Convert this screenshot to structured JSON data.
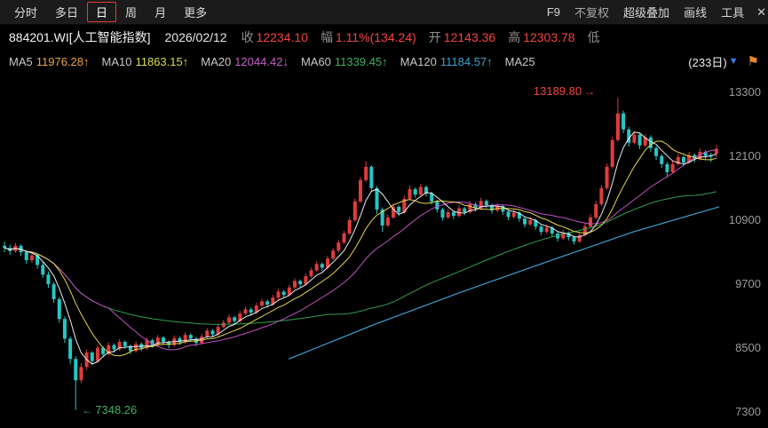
{
  "menubar": {
    "left_items": [
      {
        "label": "分时",
        "active": false
      },
      {
        "label": "多日",
        "active": false
      },
      {
        "label": "日",
        "active": true
      },
      {
        "label": "周",
        "active": false
      },
      {
        "label": "月",
        "active": false
      },
      {
        "label": "更多",
        "active": false
      }
    ],
    "right_items": [
      {
        "label": "F9",
        "dim": false
      },
      {
        "label": "不复权",
        "dim": true
      },
      {
        "label": "超级叠加",
        "dim": false
      },
      {
        "label": "画线",
        "dim": false
      },
      {
        "label": "工具",
        "dim": false
      }
    ],
    "overflow_icon": "✕"
  },
  "quote": {
    "symbol": "884201.WI[人工智能指数]",
    "date": "2026/02/12",
    "fields": [
      {
        "label": "收",
        "value": "12234.10"
      },
      {
        "label": "幅",
        "value": "1.11%(134.24)"
      },
      {
        "label": "开",
        "value": "12143.36"
      },
      {
        "label": "高",
        "value": "12303.78"
      },
      {
        "label": "低",
        "value": ""
      }
    ]
  },
  "ma_legend": {
    "items": [
      {
        "label": "MA5",
        "value": "11976.28↑",
        "color": "#e8a448"
      },
      {
        "label": "MA10",
        "value": "11863.15↑",
        "color": "#dcdc52"
      },
      {
        "label": "MA20",
        "value": "12044.42↓",
        "color": "#c85fc8"
      },
      {
        "label": "MA60",
        "value": "11339.45↑",
        "color": "#3fae5f"
      },
      {
        "label": "MA120",
        "value": "11184.57↑",
        "color": "#3f9fd0"
      },
      {
        "label": "MA25",
        "value": "",
        "color": "#9a9a9a"
      }
    ],
    "period_badge": "(233日)",
    "dropdown_icon": "▼",
    "flag_icon": "⚑"
  },
  "colors": {
    "up": "#e03c3c",
    "down": "#26c6c6",
    "ma5": "#eeeeee",
    "ma10": "#e6d44a",
    "ma20": "#c24fc2",
    "ma60": "#2f9e4f",
    "ma120": "#3f9fd0",
    "axis_text": "#9a9a9a",
    "background": "#000000"
  },
  "chart_data": {
    "type": "candlestick",
    "title": "884201.WI 人工智能指数 日K",
    "y_ticks": [
      13300,
      12100,
      10900,
      9700,
      8500,
      7300
    ],
    "y_range": [
      7140,
      13560
    ],
    "legend_position": "top",
    "grid": false,
    "annotations": {
      "high": {
        "label": "13189.80",
        "price": 13189.8,
        "index": 112,
        "arrow": "→"
      },
      "low": {
        "label": "7348.26",
        "price": 7348.26,
        "index": 13,
        "arrow": "←"
      }
    },
    "ma_windows": [
      5,
      10,
      20,
      60
    ],
    "ma120_anchors": [
      [
        0.4,
        8300
      ],
      [
        0.52,
        8950
      ],
      [
        0.64,
        9550
      ],
      [
        0.76,
        10120
      ],
      [
        0.88,
        10680
      ],
      [
        1.0,
        11150
      ]
    ],
    "candles": [
      [
        10420,
        10500,
        10300,
        10380
      ],
      [
        10380,
        10440,
        10250,
        10320
      ],
      [
        10320,
        10470,
        10290,
        10420
      ],
      [
        10420,
        10450,
        10230,
        10300
      ],
      [
        10300,
        10340,
        10080,
        10150
      ],
      [
        10150,
        10290,
        10100,
        10240
      ],
      [
        10240,
        10260,
        9990,
        10060
      ],
      [
        10060,
        10120,
        9820,
        9880
      ],
      [
        9880,
        9940,
        9630,
        9700
      ],
      [
        9700,
        9740,
        9350,
        9420
      ],
      [
        9420,
        9460,
        8980,
        9050
      ],
      [
        9050,
        9100,
        8600,
        8680
      ],
      [
        8680,
        8720,
        8210,
        8300
      ],
      [
        8300,
        8350,
        7348.26,
        7900
      ],
      [
        7900,
        8220,
        7850,
        8150
      ],
      [
        8150,
        8480,
        8100,
        8420
      ],
      [
        8420,
        8450,
        8190,
        8260
      ],
      [
        8260,
        8560,
        8230,
        8510
      ],
      [
        8510,
        8540,
        8330,
        8390
      ],
      [
        8390,
        8610,
        8360,
        8560
      ],
      [
        8560,
        8590,
        8420,
        8480
      ],
      [
        8480,
        8670,
        8450,
        8620
      ],
      [
        8620,
        8650,
        8490,
        8540
      ],
      [
        8540,
        8570,
        8390,
        8450
      ],
      [
        8450,
        8630,
        8420,
        8580
      ],
      [
        8580,
        8610,
        8450,
        8500
      ],
      [
        8500,
        8700,
        8470,
        8650
      ],
      [
        8650,
        8680,
        8510,
        8560
      ],
      [
        8560,
        8750,
        8530,
        8700
      ],
      [
        8700,
        8730,
        8570,
        8620
      ],
      [
        8620,
        8650,
        8500,
        8560
      ],
      [
        8560,
        8740,
        8530,
        8690
      ],
      [
        8690,
        8720,
        8560,
        8610
      ],
      [
        8610,
        8800,
        8580,
        8750
      ],
      [
        8750,
        8780,
        8630,
        8680
      ],
      [
        8680,
        8710,
        8540,
        8600
      ],
      [
        8600,
        8770,
        8570,
        8720
      ],
      [
        8720,
        8880,
        8690,
        8830
      ],
      [
        8830,
        8860,
        8700,
        8760
      ],
      [
        8760,
        8950,
        8730,
        8900
      ],
      [
        8900,
        9030,
        8870,
        8980
      ],
      [
        8980,
        9130,
        8950,
        9080
      ],
      [
        9080,
        9110,
        8950,
        9010
      ],
      [
        9010,
        9200,
        8980,
        9150
      ],
      [
        9150,
        9280,
        9120,
        9230
      ],
      [
        9230,
        9260,
        9110,
        9170
      ],
      [
        9170,
        9350,
        9140,
        9300
      ],
      [
        9300,
        9430,
        9270,
        9380
      ],
      [
        9380,
        9410,
        9260,
        9320
      ],
      [
        9320,
        9500,
        9290,
        9450
      ],
      [
        9450,
        9610,
        9420,
        9560
      ],
      [
        9560,
        9590,
        9440,
        9500
      ],
      [
        9500,
        9690,
        9470,
        9640
      ],
      [
        9640,
        9810,
        9610,
        9760
      ],
      [
        9760,
        9790,
        9640,
        9700
      ],
      [
        9700,
        9900,
        9670,
        9850
      ],
      [
        9850,
        10010,
        9820,
        9960
      ],
      [
        9960,
        10130,
        9930,
        10080
      ],
      [
        10080,
        10110,
        9950,
        10010
      ],
      [
        10010,
        10230,
        9980,
        10180
      ],
      [
        10180,
        10380,
        10150,
        10330
      ],
      [
        10330,
        10530,
        10300,
        10480
      ],
      [
        10480,
        10700,
        10450,
        10650
      ],
      [
        10650,
        10960,
        10620,
        10900
      ],
      [
        10900,
        11310,
        10870,
        11250
      ],
      [
        11250,
        11710,
        11220,
        11650
      ],
      [
        11650,
        12004,
        11620,
        11900
      ],
      [
        11900,
        11930,
        11440,
        11500
      ],
      [
        11500,
        11540,
        11020,
        11100
      ],
      [
        11100,
        11140,
        10680,
        10800
      ],
      [
        10800,
        11010,
        10770,
        10950
      ],
      [
        10950,
        11210,
        10920,
        11150
      ],
      [
        11150,
        11180,
        10980,
        11050
      ],
      [
        11050,
        11360,
        11020,
        11300
      ],
      [
        11300,
        11550,
        11270,
        11480
      ],
      [
        11480,
        11510,
        11320,
        11380
      ],
      [
        11380,
        11580,
        11350,
        11520
      ],
      [
        11520,
        11550,
        11340,
        11400
      ],
      [
        11400,
        11430,
        11190,
        11250
      ],
      [
        11250,
        11280,
        11040,
        11100
      ],
      [
        11100,
        11130,
        10890,
        10950
      ],
      [
        10950,
        11110,
        10920,
        11050
      ],
      [
        11050,
        11080,
        10920,
        10980
      ],
      [
        10980,
        11180,
        10950,
        11120
      ],
      [
        11120,
        11150,
        10990,
        11050
      ],
      [
        11050,
        11260,
        11020,
        11200
      ],
      [
        11200,
        11230,
        11060,
        11120
      ],
      [
        11120,
        11320,
        11090,
        11260
      ],
      [
        11260,
        11290,
        11120,
        11180
      ],
      [
        11180,
        11210,
        11020,
        11080
      ],
      [
        11080,
        11220,
        11050,
        11160
      ],
      [
        11160,
        11190,
        11000,
        11060
      ],
      [
        11060,
        11090,
        10900,
        10960
      ],
      [
        10960,
        11100,
        10930,
        11040
      ],
      [
        11040,
        11070,
        10870,
        10930
      ],
      [
        10930,
        10960,
        10760,
        10820
      ],
      [
        10820,
        10960,
        10790,
        10900
      ],
      [
        10900,
        10930,
        10720,
        10780
      ],
      [
        10780,
        10810,
        10620,
        10680
      ],
      [
        10680,
        10820,
        10650,
        10760
      ],
      [
        10760,
        10790,
        10590,
        10650
      ],
      [
        10650,
        10680,
        10500,
        10560
      ],
      [
        10560,
        10720,
        10530,
        10660
      ],
      [
        10660,
        10690,
        10520,
        10580
      ],
      [
        10580,
        10610,
        10440,
        10500
      ],
      [
        10500,
        10680,
        10470,
        10620
      ],
      [
        10620,
        10840,
        10590,
        10780
      ],
      [
        10780,
        11010,
        10750,
        10950
      ],
      [
        10950,
        11260,
        10920,
        11200
      ],
      [
        11200,
        11560,
        11170,
        11500
      ],
      [
        11500,
        11960,
        11470,
        11900
      ],
      [
        11900,
        12460,
        11870,
        12400
      ],
      [
        12400,
        13189.8,
        12370,
        12900
      ],
      [
        12900,
        12950,
        12530,
        12600
      ],
      [
        12600,
        12650,
        12280,
        12350
      ],
      [
        12350,
        12560,
        12320,
        12500
      ],
      [
        12500,
        12540,
        12230,
        12300
      ],
      [
        12300,
        12510,
        12270,
        12450
      ],
      [
        12450,
        12490,
        12180,
        12250
      ],
      [
        12250,
        12290,
        12030,
        12100
      ],
      [
        12100,
        12140,
        11880,
        11950
      ],
      [
        11950,
        11990,
        11700,
        11800
      ],
      [
        11800,
        12010,
        11770,
        11950
      ],
      [
        11950,
        12140,
        11920,
        12080
      ],
      [
        12080,
        12110,
        11910,
        11980
      ],
      [
        11980,
        12180,
        11950,
        12120
      ],
      [
        12120,
        12150,
        11980,
        12050
      ],
      [
        12050,
        12240,
        12020,
        12180
      ],
      [
        12180,
        12210,
        12030,
        12100
      ],
      [
        12100,
        12160,
        11990,
        12099.86
      ],
      [
        12143.36,
        12303.78,
        12080,
        12234.1
      ]
    ]
  }
}
